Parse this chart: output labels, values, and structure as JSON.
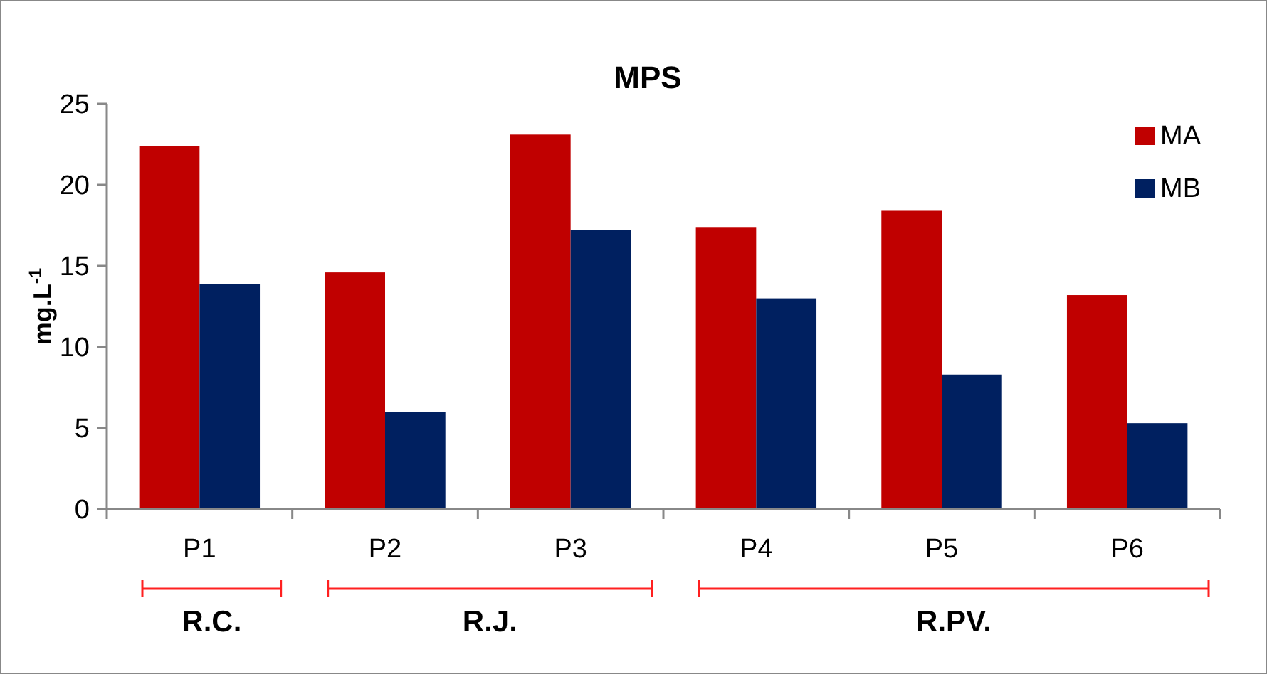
{
  "chart_data": {
    "type": "bar",
    "title": "MPS",
    "ylabel": "mg.L$^{-1}$",
    "categories": [
      "P1",
      "P2",
      "P3",
      "P4",
      "P5",
      "P6"
    ],
    "series": [
      {
        "name": "MA",
        "color": "#c00000",
        "values": [
          22.4,
          14.6,
          23.1,
          17.4,
          18.4,
          13.2
        ]
      },
      {
        "name": "MB",
        "color": "#002060",
        "values": [
          13.9,
          6.0,
          17.2,
          13.0,
          8.3,
          5.3
        ]
      }
    ],
    "ylim": [
      0,
      25
    ],
    "yticks": [
      0,
      5,
      10,
      15,
      20,
      25
    ],
    "grid": false,
    "legend": "top right",
    "annotations": [
      "R.C.",
      "R.J.",
      "R.PV."
    ]
  }
}
